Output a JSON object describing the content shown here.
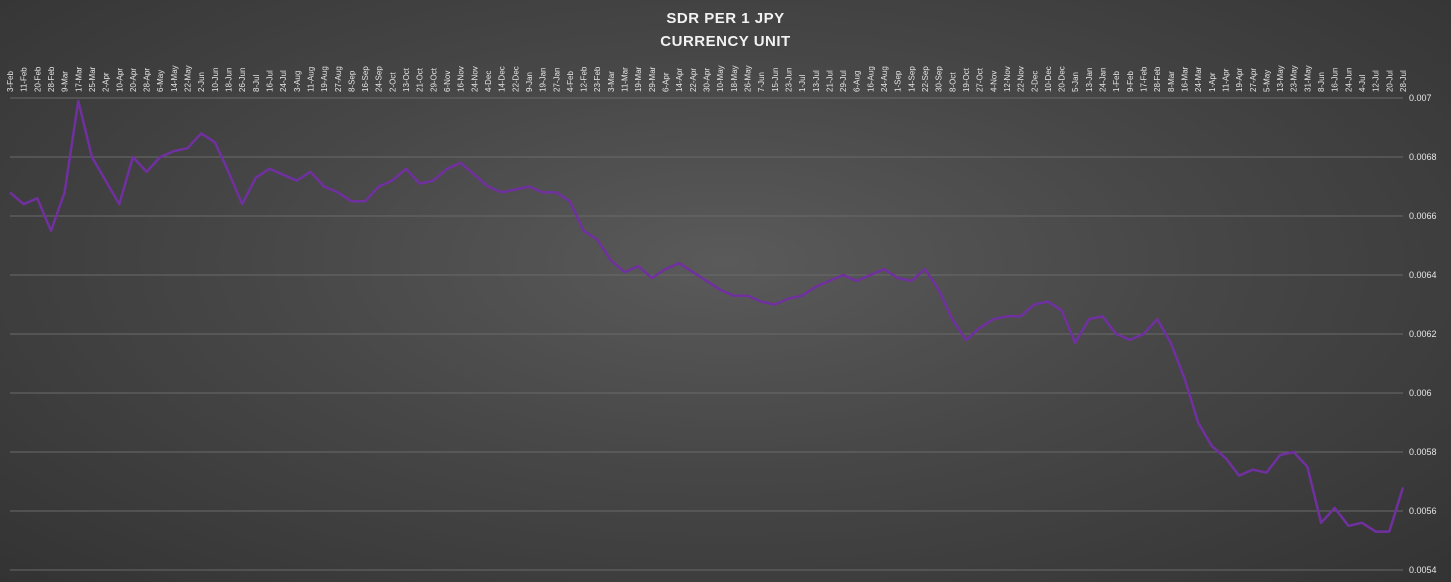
{
  "chart_data": {
    "type": "line",
    "title_lines": [
      "SDR PER 1 JPY",
      "CURRENCY UNIT"
    ],
    "xlabel": "",
    "ylabel": "",
    "ylim": [
      0.0054,
      0.007
    ],
    "y_ticks": [
      "0.0054",
      "0.0056",
      "0.0058",
      "0.006",
      "0.0062",
      "0.0064",
      "0.0066",
      "0.0068",
      "0.007"
    ],
    "grid": "horizontal",
    "legend": "none",
    "colors": {
      "line": "#7030a0",
      "grid": "#6a6a6a",
      "text": "#e6e6e6"
    },
    "x_tick_labels": [
      "3-Feb",
      "11-Feb",
      "20-Feb",
      "28-Feb",
      "9-Mar",
      "17-Mar",
      "25-Mar",
      "2-Apr",
      "10-Apr",
      "20-Apr",
      "28-Apr",
      "6-May",
      "14-May",
      "22-May",
      "2-Jun",
      "10-Jun",
      "18-Jun",
      "26-Jun",
      "8-Jul",
      "16-Jul",
      "24-Jul",
      "3-Aug",
      "11-Aug",
      "19-Aug",
      "27-Aug",
      "8-Sep",
      "16-Sep",
      "24-Sep",
      "2-Oct",
      "13-Oct",
      "21-Oct",
      "29-Oct",
      "6-Nov",
      "16-Nov",
      "24-Nov",
      "4-Dec",
      "14-Dec",
      "22-Dec",
      "9-Jan",
      "19-Jan",
      "27-Jan",
      "4-Feb",
      "12-Feb",
      "23-Feb",
      "3-Mar",
      "11-Mar",
      "19-Mar",
      "29-Mar",
      "6-Apr",
      "14-Apr",
      "22-Apr",
      "30-Apr",
      "10-May",
      "18-May",
      "26-May",
      "7-Jun",
      "15-Jun",
      "23-Jun",
      "1-Jul",
      "13-Jul",
      "21-Jul",
      "29-Jul",
      "6-Aug",
      "16-Aug",
      "24-Aug",
      "1-Sep",
      "14-Sep",
      "22-Sep",
      "30-Sep",
      "8-Oct",
      "19-Oct",
      "27-Oct",
      "4-Nov",
      "12-Nov",
      "22-Nov",
      "2-Dec",
      "10-Dec",
      "20-Dec",
      "5-Jan",
      "13-Jan",
      "24-Jan",
      "1-Feb",
      "9-Feb",
      "17-Feb",
      "28-Feb",
      "8-Mar",
      "16-Mar",
      "24-Mar",
      "1-Apr",
      "11-Apr",
      "19-Apr",
      "27-Apr",
      "5-May",
      "13-May",
      "23-May",
      "31-May",
      "8-Jun",
      "16-Jun",
      "24-Jun",
      "4-Jul",
      "12-Jul",
      "20-Jul",
      "28-Jul"
    ],
    "series": [
      {
        "name": "",
        "x_index": [
          0,
          1,
          2,
          3,
          4,
          5,
          6,
          7,
          8,
          9,
          10,
          11,
          12,
          13,
          14,
          15,
          16,
          17,
          18,
          19,
          20,
          21,
          22,
          23,
          24,
          25,
          26,
          27,
          28,
          29,
          30,
          31,
          32,
          33,
          34,
          35,
          36,
          37,
          38,
          39,
          40,
          41,
          42,
          43,
          44,
          45,
          46,
          47,
          48,
          49,
          50,
          51,
          52,
          53,
          54,
          55,
          56,
          57,
          58,
          59,
          60,
          61,
          62,
          63,
          64,
          65,
          66,
          67,
          68,
          69,
          70,
          71,
          72,
          73,
          74,
          75,
          76,
          77,
          78,
          79,
          80,
          81,
          82,
          83,
          84,
          85,
          86,
          87,
          88,
          89,
          90,
          91,
          92,
          93,
          94,
          95,
          96,
          97,
          98,
          99,
          100,
          101,
          102
        ],
        "values": [
          0.00668,
          0.00664,
          0.00666,
          0.00655,
          0.00668,
          0.00699,
          0.0068,
          0.00672,
          0.00664,
          0.0068,
          0.00675,
          0.0068,
          0.00682,
          0.00683,
          0.00688,
          0.00685,
          0.00675,
          0.00664,
          0.00673,
          0.00676,
          0.00674,
          0.00672,
          0.00675,
          0.0067,
          0.00668,
          0.00665,
          0.00665,
          0.0067,
          0.00672,
          0.00676,
          0.00671,
          0.00672,
          0.00676,
          0.00678,
          0.00674,
          0.0067,
          0.00668,
          0.00669,
          0.0067,
          0.00668,
          0.00668,
          0.00665,
          0.00655,
          0.00652,
          0.00645,
          0.00641,
          0.00643,
          0.00639,
          0.00642,
          0.00644,
          0.00641,
          0.00638,
          0.00635,
          0.00633,
          0.00633,
          0.00631,
          0.0063,
          0.00632,
          0.00633,
          0.00636,
          0.00638,
          0.0064,
          0.00638,
          0.0064,
          0.00642,
          0.00639,
          0.00638,
          0.00642,
          0.00635,
          0.00625,
          0.00618,
          0.00622,
          0.00625,
          0.00626,
          0.00626,
          0.0063,
          0.00631,
          0.00628,
          0.00617,
          0.00625,
          0.00626,
          0.0062,
          0.00618,
          0.0062,
          0.00625,
          0.00617,
          0.00605,
          0.0059,
          0.00582,
          0.00578,
          0.00572,
          0.00574,
          0.00573,
          0.00579,
          0.0058,
          0.00575,
          0.00556,
          0.00561,
          0.00555,
          0.00556,
          0.00553,
          0.00553,
          0.00568
        ]
      }
    ]
  }
}
